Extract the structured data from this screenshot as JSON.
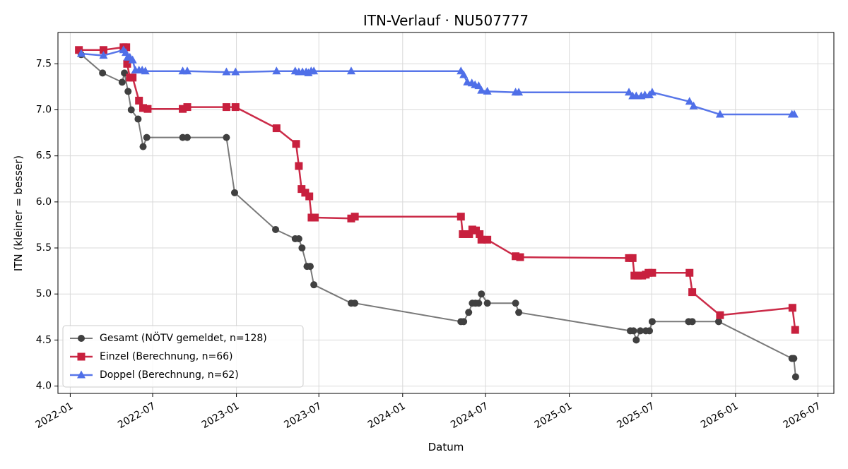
{
  "chart_data": {
    "type": "line",
    "title": "ITN-Verlauf · NU507777",
    "xlabel": "Datum",
    "ylabel": "ITN  (kleiner = besser)",
    "x_ticks": [
      "2022-01",
      "2022-07",
      "2023-01",
      "2023-07",
      "2024-01",
      "2024-07",
      "2025-01",
      "2025-07",
      "2026-01",
      "2026-07"
    ],
    "y_ticks": [
      "4.0",
      "4.5",
      "5.0",
      "5.5",
      "6.0",
      "6.5",
      "7.0",
      "7.5"
    ],
    "xlim": [
      "2021-12-05",
      "2026-08-05"
    ],
    "ylim": [
      3.92,
      7.84
    ],
    "grid": true,
    "legend_position": "lower-left",
    "series": [
      {
        "name": "Gesamt (NÖTV gemeldet, n=128)",
        "color": "#404040",
        "marker": "circle",
        "points": [
          [
            "2022-01-25",
            7.6
          ],
          [
            "2022-03-13",
            7.4
          ],
          [
            "2022-04-25",
            7.3
          ],
          [
            "2022-04-30",
            7.4
          ],
          [
            "2022-05-08",
            7.2
          ],
          [
            "2022-05-15",
            7.0
          ],
          [
            "2022-05-30",
            6.9
          ],
          [
            "2022-06-10",
            6.6
          ],
          [
            "2022-06-18",
            6.7
          ],
          [
            "2022-09-05",
            6.7
          ],
          [
            "2022-09-15",
            6.7
          ],
          [
            "2022-12-10",
            6.7
          ],
          [
            "2022-12-28",
            6.1
          ],
          [
            "2023-03-28",
            5.7
          ],
          [
            "2023-05-10",
            5.6
          ],
          [
            "2023-05-18",
            5.6
          ],
          [
            "2023-05-25",
            5.5
          ],
          [
            "2023-06-05",
            5.3
          ],
          [
            "2023-06-12",
            5.3
          ],
          [
            "2023-06-20",
            5.1
          ],
          [
            "2023-09-10",
            4.9
          ],
          [
            "2023-09-18",
            4.9
          ],
          [
            "2024-05-08",
            4.7
          ],
          [
            "2024-05-14",
            4.7
          ],
          [
            "2024-05-25",
            4.8
          ],
          [
            "2024-06-02",
            4.9
          ],
          [
            "2024-06-09",
            4.9
          ],
          [
            "2024-06-16",
            4.9
          ],
          [
            "2024-06-22",
            5.0
          ],
          [
            "2024-07-05",
            4.9
          ],
          [
            "2024-09-05",
            4.9
          ],
          [
            "2024-09-12",
            4.8
          ],
          [
            "2025-05-15",
            4.6
          ],
          [
            "2025-05-22",
            4.6
          ],
          [
            "2025-05-28",
            4.5
          ],
          [
            "2025-06-06",
            4.6
          ],
          [
            "2025-06-18",
            4.6
          ],
          [
            "2025-06-26",
            4.6
          ],
          [
            "2025-07-02",
            4.7
          ],
          [
            "2025-09-20",
            4.7
          ],
          [
            "2025-09-28",
            4.7
          ],
          [
            "2025-11-25",
            4.7
          ],
          [
            "2026-05-05",
            4.3
          ],
          [
            "2026-05-09",
            4.3
          ],
          [
            "2026-05-13",
            4.1
          ]
        ]
      },
      {
        "name": "Einzel (Berechnung, n=66)",
        "color": "#c8203e",
        "marker": "square",
        "points": [
          [
            "2022-01-20",
            7.65
          ],
          [
            "2022-03-15",
            7.65
          ],
          [
            "2022-04-28",
            7.68
          ],
          [
            "2022-05-04",
            7.68
          ],
          [
            "2022-05-06",
            7.5
          ],
          [
            "2022-05-12",
            7.35
          ],
          [
            "2022-05-18",
            7.35
          ],
          [
            "2022-06-01",
            7.1
          ],
          [
            "2022-06-10",
            7.02
          ],
          [
            "2022-06-20",
            7.01
          ],
          [
            "2022-09-05",
            7.01
          ],
          [
            "2022-09-15",
            7.03
          ],
          [
            "2022-12-10",
            7.03
          ],
          [
            "2022-12-30",
            7.03
          ],
          [
            "2023-03-30",
            6.8
          ],
          [
            "2023-05-12",
            6.63
          ],
          [
            "2023-05-18",
            6.39
          ],
          [
            "2023-05-24",
            6.14
          ],
          [
            "2023-06-01",
            6.1
          ],
          [
            "2023-06-10",
            6.06
          ],
          [
            "2023-06-15",
            5.83
          ],
          [
            "2023-06-22",
            5.83
          ],
          [
            "2023-09-10",
            5.82
          ],
          [
            "2023-09-18",
            5.84
          ],
          [
            "2024-05-08",
            5.84
          ],
          [
            "2024-05-12",
            5.65
          ],
          [
            "2024-05-26",
            5.65
          ],
          [
            "2024-06-02",
            5.7
          ],
          [
            "2024-06-10",
            5.69
          ],
          [
            "2024-06-18",
            5.65
          ],
          [
            "2024-06-22",
            5.59
          ],
          [
            "2024-07-05",
            5.59
          ],
          [
            "2024-09-05",
            5.41
          ],
          [
            "2024-09-15",
            5.4
          ],
          [
            "2025-05-12",
            5.39
          ],
          [
            "2025-05-20",
            5.39
          ],
          [
            "2025-05-24",
            5.2
          ],
          [
            "2025-06-01",
            5.2
          ],
          [
            "2025-06-10",
            5.2
          ],
          [
            "2025-06-18",
            5.21
          ],
          [
            "2025-06-24",
            5.23
          ],
          [
            "2025-07-02",
            5.23
          ],
          [
            "2025-09-22",
            5.23
          ],
          [
            "2025-09-28",
            5.02
          ],
          [
            "2025-11-28",
            4.77
          ],
          [
            "2026-05-06",
            4.85
          ],
          [
            "2026-05-12",
            4.61
          ]
        ]
      },
      {
        "name": "Doppel (Berechnung, n=62)",
        "color": "#4f6fe8",
        "marker": "triangle",
        "points": [
          [
            "2022-01-25",
            7.61
          ],
          [
            "2022-03-15",
            7.59
          ],
          [
            "2022-04-28",
            7.65
          ],
          [
            "2022-05-03",
            7.62
          ],
          [
            "2022-05-07",
            7.57
          ],
          [
            "2022-05-12",
            7.57
          ],
          [
            "2022-05-18",
            7.54
          ],
          [
            "2022-05-24",
            7.43
          ],
          [
            "2022-06-01",
            7.43
          ],
          [
            "2022-06-08",
            7.43
          ],
          [
            "2022-06-15",
            7.42
          ],
          [
            "2022-09-05",
            7.42
          ],
          [
            "2022-09-15",
            7.42
          ],
          [
            "2022-12-10",
            7.41
          ],
          [
            "2022-12-30",
            7.41
          ],
          [
            "2023-03-30",
            7.42
          ],
          [
            "2023-05-10",
            7.42
          ],
          [
            "2023-05-18",
            7.41
          ],
          [
            "2023-05-26",
            7.41
          ],
          [
            "2023-06-03",
            7.41
          ],
          [
            "2023-06-08",
            7.4
          ],
          [
            "2023-06-14",
            7.42
          ],
          [
            "2023-06-20",
            7.42
          ],
          [
            "2023-09-10",
            7.42
          ],
          [
            "2024-05-08",
            7.42
          ],
          [
            "2024-05-14",
            7.38
          ],
          [
            "2024-05-22",
            7.3
          ],
          [
            "2024-06-01",
            7.29
          ],
          [
            "2024-06-08",
            7.27
          ],
          [
            "2024-06-16",
            7.26
          ],
          [
            "2024-06-22",
            7.21
          ],
          [
            "2024-07-05",
            7.2
          ],
          [
            "2024-09-05",
            7.19
          ],
          [
            "2024-09-12",
            7.19
          ],
          [
            "2025-05-12",
            7.19
          ],
          [
            "2025-05-20",
            7.15
          ],
          [
            "2025-05-28",
            7.15
          ],
          [
            "2025-06-08",
            7.15
          ],
          [
            "2025-06-16",
            7.16
          ],
          [
            "2025-06-26",
            7.16
          ],
          [
            "2025-07-02",
            7.19
          ],
          [
            "2025-09-22",
            7.09
          ],
          [
            "2025-10-01",
            7.04
          ],
          [
            "2025-11-28",
            6.95
          ],
          [
            "2026-05-05",
            6.95
          ],
          [
            "2026-05-10",
            6.95
          ]
        ]
      }
    ]
  }
}
